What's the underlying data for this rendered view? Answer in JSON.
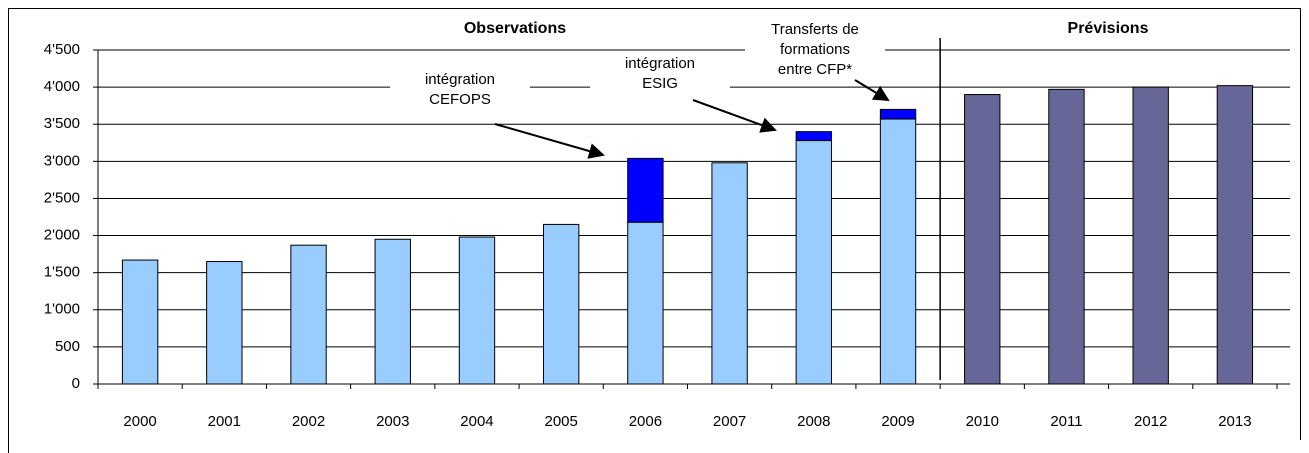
{
  "chart_data": {
    "type": "bar",
    "stacked": true,
    "categories": [
      "2000",
      "2001",
      "2002",
      "2003",
      "2004",
      "2005",
      "2006",
      "2007",
      "2008",
      "2009",
      "2010",
      "2011",
      "2012",
      "2013"
    ],
    "series": [
      {
        "color": "#99ccff",
        "values": [
          1670,
          1650,
          1870,
          1950,
          1980,
          2150,
          2180,
          2980,
          3280,
          3570,
          null,
          null,
          null,
          null
        ]
      },
      {
        "color": "#0000ff",
        "values": [
          null,
          null,
          null,
          null,
          null,
          null,
          860,
          null,
          120,
          130,
          null,
          null,
          null,
          null
        ]
      },
      {
        "color": "#666699",
        "values": [
          null,
          null,
          null,
          null,
          null,
          null,
          null,
          null,
          null,
          null,
          3900,
          3970,
          4000,
          4020
        ]
      }
    ],
    "ylim": [
      0,
      4500
    ],
    "yticks": [
      0,
      500,
      {
        "value": 1000,
        "label": "1'000"
      },
      {
        "value": 1500,
        "label": "1'500"
      },
      {
        "value": 2000,
        "label": "2'000"
      },
      {
        "value": 2500,
        "label": "2'500"
      },
      {
        "value": 3000,
        "label": "3'000"
      },
      {
        "value": 3500,
        "label": "3'500"
      },
      {
        "value": 4000,
        "label": "4'000"
      },
      {
        "value": 4500,
        "label": "4'500"
      }
    ],
    "grid": true,
    "sections": [
      "Observations",
      "Prévisions"
    ],
    "annotations": [
      {
        "lines": [
          "intégration",
          "CEFOPS"
        ]
      },
      {
        "lines": [
          "intégration",
          "ESIG"
        ]
      },
      {
        "lines": [
          "Transferts de",
          "formations",
          "entre CFP*"
        ]
      }
    ]
  }
}
